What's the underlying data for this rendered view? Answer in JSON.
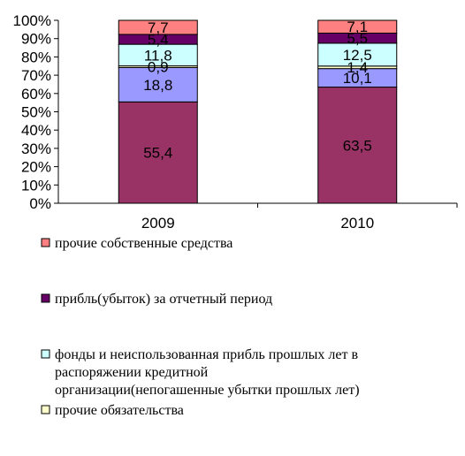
{
  "chart_data": {
    "type": "bar",
    "stacked": true,
    "percent": true,
    "categories": [
      "2009",
      "2010"
    ],
    "ylim": [
      0,
      100
    ],
    "yticks": [
      "0%",
      "10%",
      "20%",
      "30%",
      "40%",
      "50%",
      "60%",
      "70%",
      "80%",
      "90%",
      "100%"
    ],
    "series": [
      {
        "key": "s1",
        "values": [
          55.4,
          63.5
        ],
        "labels": [
          "55,4",
          "63,5"
        ],
        "color": "#993366"
      },
      {
        "key": "s2",
        "values": [
          18.8,
          10.1
        ],
        "labels": [
          "18,8",
          "10,1"
        ],
        "color": "#9999ff"
      },
      {
        "name": "прочие обязательства",
        "values": [
          0.9,
          1.4
        ],
        "labels": [
          "0,9",
          "1,4"
        ],
        "color": "#ffffcc"
      },
      {
        "name": "фонды и неиспользованная прибль прошлых лет в распоряжении кредитной организации(непогашенные убытки прошлых лет)",
        "values": [
          11.8,
          12.5
        ],
        "labels": [
          "11,8",
          "12,5"
        ],
        "color": "#ccffff"
      },
      {
        "name": "прибль(убыток) за отчетный период",
        "values": [
          5.4,
          5.5
        ],
        "labels": [
          "5,4",
          "5,5"
        ],
        "color": "#660066"
      },
      {
        "name": "прочие собственные средства",
        "values": [
          7.7,
          7.1
        ],
        "labels": [
          "7,7",
          "7,1"
        ],
        "color": "#ff8080"
      }
    ],
    "legend": {
      "placement": "bottom",
      "entries": [
        {
          "lines": [
            "прочие собственные средства"
          ],
          "color": "#ff8080"
        },
        {
          "lines": [
            "прибль(убыток) за отчетный период"
          ],
          "color": "#660066"
        },
        {
          "lines": [
            "фонды и неиспользованная прибль прошлых лет в",
            "распоряжении кредитной",
            "организации(непогашенные убытки прошлых лет)"
          ],
          "color": "#ccffff"
        },
        {
          "lines": [
            "прочие обязательства"
          ],
          "color": "#ffffcc"
        }
      ]
    }
  }
}
